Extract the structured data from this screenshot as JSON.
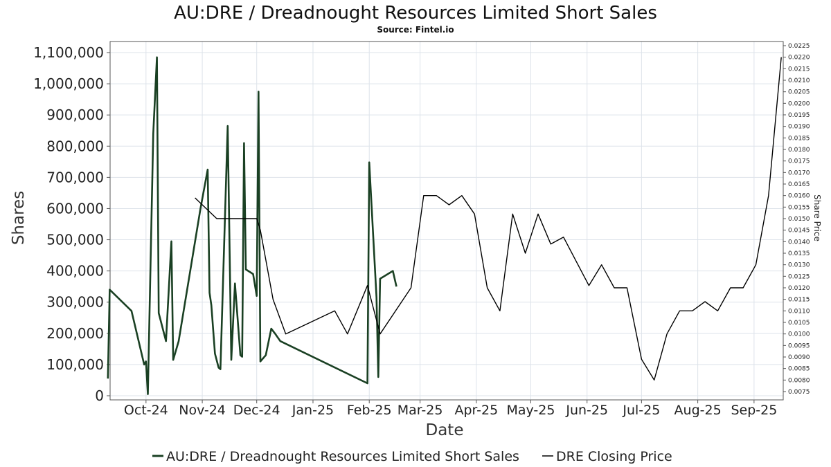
{
  "title": "AU:DRE / Dreadnought Resources Limited Short Sales",
  "subtitle": "Source: Fintel.io",
  "chart_data": {
    "type": "line",
    "title": "AU:DRE / Dreadnought Resources Limited Short Sales",
    "subtitle": "Source: Fintel.io",
    "xlabel": "Date",
    "ylabel": "Shares",
    "y2label": "Share Price",
    "x_ticks": [
      "Oct-24",
      "Nov-24",
      "Dec-24",
      "Jan-25",
      "Feb-25",
      "Mar-25",
      "Apr-25",
      "May-25",
      "Jun-25",
      "Jul-25",
      "Aug-25",
      "Sep-25"
    ],
    "ylim": [
      0,
      1120000
    ],
    "y_ticks": [
      0,
      100000,
      200000,
      300000,
      400000,
      500000,
      600000,
      700000,
      800000,
      900000,
      1000000,
      1100000
    ],
    "y_tick_labels": [
      "0",
      "100,000",
      "200,000",
      "300,000",
      "400,000",
      "500,000",
      "600,000",
      "700,000",
      "800,000",
      "900,000",
      "1,000,000",
      "1,100,000"
    ],
    "y2lim": [
      0.0074,
      0.0225
    ],
    "y2_ticks": [
      "0.0075",
      "0.0080",
      "0.0085",
      "0.0090",
      "0.0095",
      "0.0100",
      "0.0105",
      "0.0110",
      "0.0115",
      "0.0120",
      "0.0125",
      "0.0130",
      "0.0135",
      "0.0140",
      "0.0145",
      "0.0150",
      "0.0155",
      "0.0160",
      "0.0165",
      "0.0170",
      "0.0175",
      "0.0180",
      "0.0185",
      "0.0190",
      "0.0195",
      "0.0200",
      "0.0205",
      "0.0210",
      "0.0215",
      "0.0220",
      "0.0225"
    ],
    "grid": true,
    "legend_position": "bottom",
    "series": [
      {
        "name": "AU:DRE / Dreadnought Resources Limited Short Sales",
        "axis": "left",
        "color": "#1a4023",
        "points": [
          [
            "2024-09-10",
            55000
          ],
          [
            "2024-09-11",
            340000
          ],
          [
            "2024-09-23",
            272000
          ],
          [
            "2024-09-30",
            100000
          ],
          [
            "2024-10-01",
            110000
          ],
          [
            "2024-10-02",
            5000
          ],
          [
            "2024-10-05",
            840000
          ],
          [
            "2024-10-07",
            1085000
          ],
          [
            "2024-10-08",
            265000
          ],
          [
            "2024-10-12",
            175000
          ],
          [
            "2024-10-15",
            495000
          ],
          [
            "2024-10-16",
            115000
          ],
          [
            "2024-10-19",
            175000
          ],
          [
            "2024-10-31",
            600000
          ],
          [
            "2024-11-04",
            725000
          ],
          [
            "2024-11-05",
            330000
          ],
          [
            "2024-11-06",
            290000
          ],
          [
            "2024-11-08",
            135000
          ],
          [
            "2024-11-10",
            90000
          ],
          [
            "2024-11-11",
            85000
          ],
          [
            "2024-11-15",
            865000
          ],
          [
            "2024-11-17",
            115000
          ],
          [
            "2024-11-19",
            360000
          ],
          [
            "2024-11-22",
            130000
          ],
          [
            "2024-11-23",
            125000
          ],
          [
            "2024-11-24",
            810000
          ],
          [
            "2024-11-25",
            405000
          ],
          [
            "2024-11-29",
            390000
          ],
          [
            "2024-12-01",
            320000
          ],
          [
            "2024-12-02",
            975000
          ],
          [
            "2024-12-03",
            110000
          ],
          [
            "2024-12-06",
            130000
          ],
          [
            "2024-12-09",
            215000
          ],
          [
            "2024-12-11",
            200000
          ],
          [
            "2024-12-14",
            175000
          ],
          [
            "2025-01-31",
            40000
          ],
          [
            "2025-02-01",
            748000
          ],
          [
            "2025-02-05",
            315000
          ],
          [
            "2025-02-06",
            60000
          ],
          [
            "2025-02-07",
            375000
          ],
          [
            "2025-02-14",
            400000
          ],
          [
            "2025-02-16",
            350000
          ]
        ]
      },
      {
        "name": "DRE Closing Price",
        "axis": "right",
        "color": "#000000",
        "points": [
          [
            "2024-10-28",
            0.0159
          ],
          [
            "2024-11-09",
            0.015
          ],
          [
            "2024-12-01",
            0.015
          ],
          [
            "2024-12-03",
            0.0145
          ],
          [
            "2024-12-10",
            0.0115
          ],
          [
            "2024-12-17",
            0.01
          ],
          [
            "2025-01-13",
            0.011
          ],
          [
            "2025-01-20",
            0.01
          ],
          [
            "2025-01-31",
            0.0121
          ],
          [
            "2025-02-07",
            0.01
          ],
          [
            "2025-02-24",
            0.012
          ],
          [
            "2025-03-03",
            0.016
          ],
          [
            "2025-03-10",
            0.016
          ],
          [
            "2025-03-17",
            0.0156
          ],
          [
            "2025-03-24",
            0.016
          ],
          [
            "2025-03-31",
            0.0152
          ],
          [
            "2025-04-07",
            0.012
          ],
          [
            "2025-04-14",
            0.011
          ],
          [
            "2025-04-21",
            0.0152
          ],
          [
            "2025-04-28",
            0.0135
          ],
          [
            "2025-05-05",
            0.0152
          ],
          [
            "2025-05-12",
            0.0139
          ],
          [
            "2025-05-19",
            0.0142
          ],
          [
            "2025-06-02",
            0.0121
          ],
          [
            "2025-06-09",
            0.013
          ],
          [
            "2025-06-16",
            0.012
          ],
          [
            "2025-06-23",
            0.012
          ],
          [
            "2025-07-01",
            0.0089
          ],
          [
            "2025-07-08",
            0.008
          ],
          [
            "2025-07-15",
            0.01
          ],
          [
            "2025-07-22",
            0.011
          ],
          [
            "2025-07-29",
            0.011
          ],
          [
            "2025-08-05",
            0.0114
          ],
          [
            "2025-08-12",
            0.011
          ],
          [
            "2025-08-19",
            0.012
          ],
          [
            "2025-08-26",
            0.012
          ],
          [
            "2025-09-02",
            0.013
          ],
          [
            "2025-09-09",
            0.016
          ],
          [
            "2025-09-16",
            0.022
          ]
        ]
      }
    ]
  }
}
